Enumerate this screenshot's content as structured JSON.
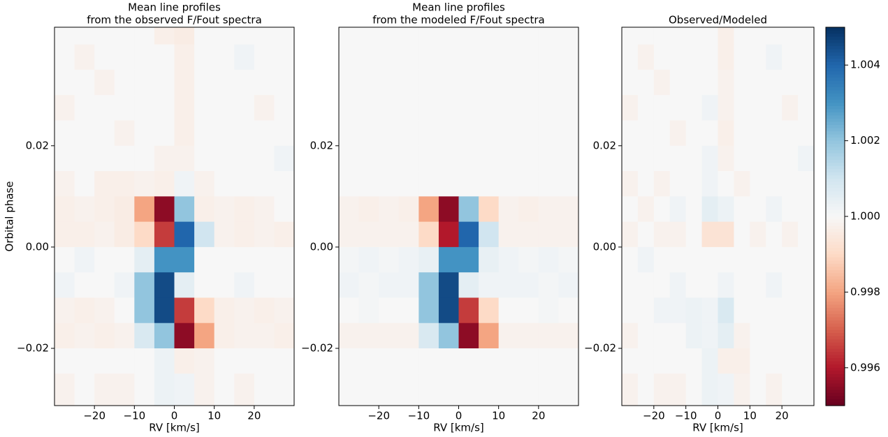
{
  "chart_data": [
    {
      "type": "heatmap",
      "title": [
        "Mean line profiles",
        "from the observed F/Fout spectra"
      ],
      "xlabel": "RV [km/s]",
      "ylabel": "Orbital phase",
      "xlim": [
        -30,
        30
      ],
      "ylim": [
        -0.0313,
        0.0434
      ],
      "xticks": [
        {
          "value": -20,
          "label": "−20"
        },
        {
          "value": -10,
          "label": "−10"
        },
        0,
        10,
        20
      ],
      "yticks": [
        {
          "value": -0.02,
          "label": "−0.02"
        },
        {
          "value": 0,
          "label": "0.00"
        },
        0.02
      ],
      "xbins": [
        -30,
        -25,
        -20,
        -15,
        -10,
        -5,
        0,
        5,
        10,
        15,
        20,
        25,
        30
      ],
      "ybins": [
        0.0434,
        0.04,
        0.035,
        0.03,
        0.025,
        0.02,
        0.015,
        0.01,
        0.005,
        0,
        -0.005,
        -0.01,
        -0.015,
        -0.02,
        -0.025,
        -0.0313
      ],
      "z": [
        [
          1,
          1,
          1,
          1,
          1,
          0.9997,
          0.9996,
          1,
          1,
          1,
          1,
          1
        ],
        [
          1,
          0.9998,
          1,
          1,
          1,
          1,
          0.9997,
          1,
          1,
          1.0002,
          1,
          1
        ],
        [
          1,
          1,
          0.9998,
          1,
          1,
          1,
          0.9997,
          1,
          1,
          1,
          1,
          1
        ],
        [
          0.9998,
          1,
          1,
          1,
          1,
          1,
          0.9997,
          1,
          1,
          1,
          0.9998,
          1
        ],
        [
          1,
          1,
          1,
          0.9998,
          1,
          1,
          0.9997,
          1,
          1,
          1,
          1,
          1
        ],
        [
          1,
          1,
          1,
          1,
          1,
          0.9998,
          0.9998,
          1,
          1,
          1,
          1,
          1.0002
        ],
        [
          0.9998,
          1,
          0.9997,
          0.9997,
          0.9998,
          0.9997,
          1.0002,
          0.9998,
          1,
          1,
          1,
          1
        ],
        [
          0.9997,
          0.9998,
          0.9997,
          0.9996,
          0.998,
          0.9955,
          1.002,
          0.9997,
          0.9998,
          0.9997,
          0.9998,
          1
        ],
        [
          0.9997,
          0.9997,
          0.9998,
          0.9996,
          0.999,
          0.9965,
          1.004,
          1.001,
          0.9998,
          0.9997,
          0.9998,
          0.9997
        ],
        [
          1,
          1.0002,
          1,
          1,
          1.0005,
          1.003,
          1.003,
          1,
          1,
          1,
          1,
          1
        ],
        [
          1.0002,
          1,
          1,
          1.0002,
          1.002,
          1.0045,
          1.0005,
          1,
          1,
          1.0002,
          1,
          1
        ],
        [
          0.9998,
          0.9997,
          0.9998,
          1,
          1.002,
          1.0045,
          0.9965,
          0.999,
          0.9997,
          0.9998,
          0.9997,
          0.9998
        ],
        [
          0.9997,
          0.9998,
          0.9997,
          0.9998,
          1.0008,
          1.002,
          0.9955,
          0.998,
          0.9997,
          0.9998,
          0.9998,
          0.9997
        ],
        [
          1,
          1,
          1,
          1,
          1,
          1.0003,
          0.9997,
          0.9998,
          1,
          1,
          1,
          1
        ],
        [
          0.9998,
          1,
          0.9998,
          0.9998,
          1,
          1.0003,
          1.0002,
          0.9998,
          1,
          0.9998,
          1,
          1
        ]
      ]
    },
    {
      "type": "heatmap",
      "title": [
        "Mean line profiles",
        "from the modeled F/Fout spectra"
      ],
      "xlabel": "RV [km/s]",
      "xlim": [
        -30,
        30
      ],
      "ylim": [
        -0.0313,
        0.0434
      ],
      "xticks": [
        {
          "value": -20,
          "label": "−20"
        },
        {
          "value": -10,
          "label": "−10"
        },
        0,
        10,
        20
      ],
      "yticks": [
        {
          "value": -0.02,
          "label": "−0.02"
        },
        {
          "value": 0,
          "label": "0.00"
        },
        0.02
      ],
      "xbins": [
        -30,
        -25,
        -20,
        -15,
        -10,
        -5,
        0,
        5,
        10,
        15,
        20,
        25,
        30
      ],
      "ybins": [
        0.0434,
        0.04,
        0.035,
        0.03,
        0.025,
        0.02,
        0.015,
        0.01,
        0.005,
        0,
        -0.005,
        -0.01,
        -0.015,
        -0.02,
        -0.025,
        -0.0313
      ],
      "z": [
        [
          1,
          1,
          1,
          1,
          1,
          1,
          1,
          1,
          1,
          1,
          1,
          1
        ],
        [
          1,
          1,
          1,
          1,
          1,
          1,
          1,
          1,
          1,
          1,
          1,
          1
        ],
        [
          1,
          1,
          1,
          1,
          1,
          1,
          1,
          1,
          1,
          1,
          1,
          1
        ],
        [
          1,
          1,
          1,
          1,
          1,
          1,
          1,
          1,
          1,
          1,
          1,
          1
        ],
        [
          1,
          1,
          1,
          1,
          1,
          1,
          1,
          1,
          1,
          1,
          1,
          1
        ],
        [
          1,
          1,
          1,
          1,
          1,
          1,
          1,
          1,
          1,
          1,
          1,
          1
        ],
        [
          1,
          1,
          1,
          1,
          1,
          1,
          1,
          1,
          1,
          1,
          1,
          1
        ],
        [
          0.9998,
          0.9997,
          0.9998,
          0.9997,
          0.998,
          0.9955,
          1.002,
          0.999,
          0.9998,
          0.9997,
          0.9998,
          0.9998
        ],
        [
          0.9998,
          0.9998,
          0.9998,
          0.9998,
          0.999,
          0.996,
          1.004,
          1.001,
          0.9998,
          0.9998,
          0.9998,
          0.9998
        ],
        [
          1.0001,
          1.0002,
          1.0001,
          1.0002,
          1.0004,
          1.003,
          1.003,
          1.0004,
          1.0002,
          1.0001,
          1.0002,
          1.0001
        ],
        [
          1.0002,
          1.0001,
          1.0002,
          1.0002,
          1.002,
          1.0045,
          1.0005,
          1.0002,
          1.0002,
          1.0002,
          1.0001,
          1.0002
        ],
        [
          1,
          1.0001,
          1,
          1,
          1.002,
          1.0045,
          0.9965,
          0.999,
          1,
          1,
          1.0001,
          1
        ],
        [
          0.9998,
          0.9998,
          0.9998,
          0.9998,
          1.0008,
          1.002,
          0.9955,
          0.998,
          0.9998,
          0.9998,
          0.9998,
          0.9998
        ],
        [
          1,
          1,
          1,
          1,
          1,
          1,
          1,
          1,
          1,
          1,
          1,
          1
        ],
        [
          1,
          1,
          1,
          1,
          1,
          1,
          1,
          1,
          1,
          1,
          1,
          1
        ]
      ]
    },
    {
      "type": "heatmap",
      "title": [
        "Observed/Modeled"
      ],
      "xlabel": "RV [km/s]",
      "xlim": [
        -30,
        30
      ],
      "ylim": [
        -0.0313,
        0.0434
      ],
      "xticks": [
        {
          "value": -20,
          "label": "−20"
        },
        {
          "value": -10,
          "label": "−10"
        },
        0,
        10,
        20
      ],
      "yticks": [
        {
          "value": -0.02,
          "label": "−0.02"
        },
        {
          "value": 0,
          "label": "0.00"
        },
        0.02
      ],
      "xbins": [
        -30,
        -25,
        -20,
        -15,
        -10,
        -5,
        0,
        5,
        10,
        15,
        20,
        25,
        30
      ],
      "ybins": [
        0.0434,
        0.04,
        0.035,
        0.03,
        0.025,
        0.02,
        0.015,
        0.01,
        0.005,
        0,
        -0.005,
        -0.01,
        -0.015,
        -0.02,
        -0.025,
        -0.0313
      ],
      "z": [
        [
          1,
          1,
          1,
          1,
          1,
          1,
          0.9997,
          1,
          1,
          1,
          1,
          1
        ],
        [
          1,
          0.9998,
          1,
          1,
          1,
          1,
          0.9997,
          1,
          1,
          1.0002,
          1,
          1
        ],
        [
          1,
          1,
          0.9998,
          1,
          1,
          1,
          0.9998,
          1,
          1,
          1,
          1,
          1
        ],
        [
          0.9998,
          1,
          1,
          1,
          1,
          1.0002,
          0.9998,
          1,
          1,
          1,
          0.9998,
          1
        ],
        [
          1,
          1,
          1,
          0.9998,
          1,
          1,
          0.9997,
          1,
          1,
          1,
          1,
          1
        ],
        [
          1,
          1,
          1,
          1,
          1,
          1.0002,
          0.9998,
          1,
          1,
          1,
          1,
          1.0002
        ],
        [
          0.9998,
          1,
          0.9998,
          1,
          1,
          1.0002,
          1,
          0.9998,
          1,
          1,
          1,
          1
        ],
        [
          1,
          0.9998,
          1,
          1.0002,
          1,
          1.0005,
          1.0003,
          1,
          1,
          1.0002,
          1,
          1
        ],
        [
          0.9998,
          1,
          0.9998,
          0.9998,
          1,
          0.9993,
          0.9993,
          1,
          0.9998,
          1,
          0.9998,
          1
        ],
        [
          1,
          1.0002,
          1,
          1,
          1,
          1,
          1,
          1,
          1,
          1,
          1,
          1
        ],
        [
          1,
          1,
          1,
          1.0002,
          1,
          1,
          1.0002,
          1,
          1,
          1.0002,
          1,
          1
        ],
        [
          1,
          1,
          1.0002,
          1.0002,
          1.0003,
          1.0002,
          1.0008,
          1,
          1,
          1,
          1,
          1
        ],
        [
          0.9998,
          1,
          1,
          1,
          1.0003,
          1.0002,
          1.0005,
          0.9998,
          1,
          1,
          1,
          1
        ],
        [
          1,
          1,
          1,
          1,
          1,
          1.0003,
          0.9997,
          0.9997,
          1,
          1,
          1,
          1
        ],
        [
          0.9998,
          1,
          0.9998,
          0.9998,
          1,
          1.0003,
          1.0002,
          0.9998,
          1,
          0.9998,
          1,
          1
        ]
      ]
    },
    {
      "type": "colorbar",
      "colormap": "RdBu",
      "zlim": [
        0.995,
        1.005
      ],
      "zticks": [
        0.996,
        0.998,
        {
          "value": 1,
          "label": "1.000"
        },
        1.002,
        1.004
      ]
    }
  ]
}
